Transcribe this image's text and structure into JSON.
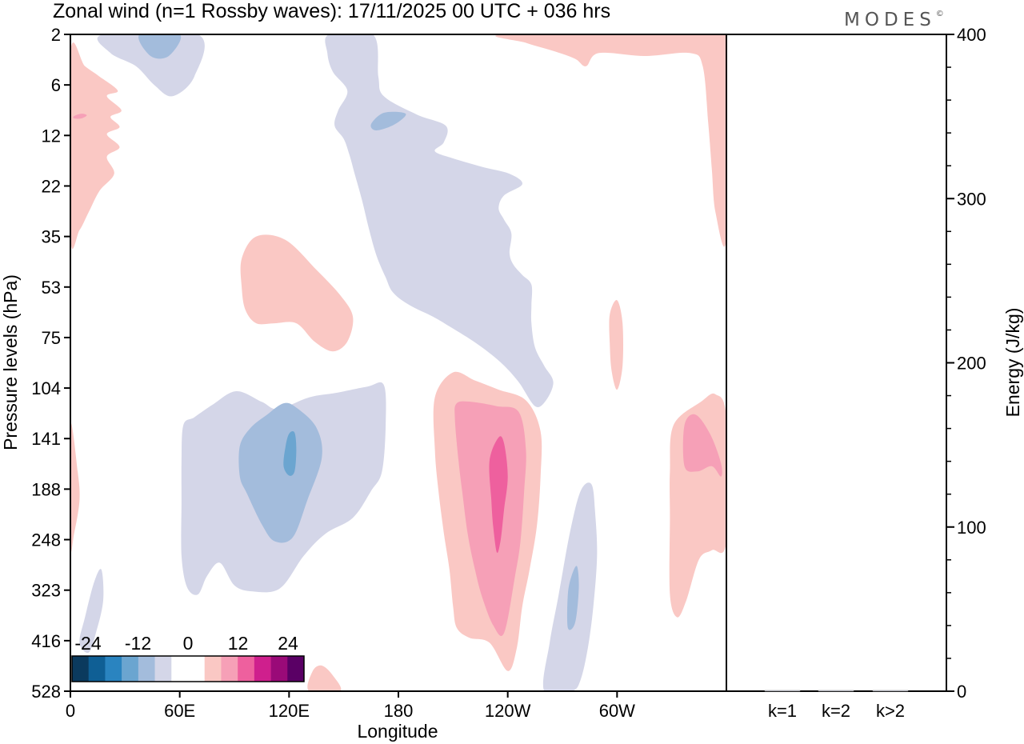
{
  "chart_data": {
    "type": "heatmap",
    "title": "Zonal wind (n=1 Rossby waves):  17/11/2025  00 UTC  + 036 hrs",
    "logo": "MODES",
    "logo_mark": "©",
    "xlabel": "Longitude",
    "ylabel": "Pressure levels (hPa)",
    "y2label": "Energy (J/kg)",
    "x_ticks": [
      "0",
      "60E",
      "120E",
      "180",
      "120W",
      "60W"
    ],
    "x_tick_values": [
      0,
      60,
      120,
      180,
      240,
      300
    ],
    "xlim": [
      0,
      360
    ],
    "pressure_levels": [
      "2",
      "6",
      "12",
      "22",
      "35",
      "53",
      "75",
      "104",
      "141",
      "188",
      "248",
      "323",
      "416",
      "528"
    ],
    "energy_ticks": [
      "0",
      "100",
      "200",
      "300",
      "400"
    ],
    "energy_tick_values": [
      0,
      100,
      200,
      300,
      400
    ],
    "energy_lim": [
      0,
      400
    ],
    "energy_categories": [
      "k=1",
      "k=2",
      "k>2"
    ],
    "energy_values": [
      0,
      0,
      0
    ],
    "colorbar": {
      "tick_labels": [
        "-24",
        "-12",
        "0",
        "12",
        "24"
      ],
      "colors": [
        "#0b3a5e",
        "#0f5f95",
        "#2a84c0",
        "#6ba5d0",
        "#a3bcdc",
        "#d4d6e8",
        "#ffffff",
        "#ffffff",
        "#fac8c4",
        "#f6a0b7",
        "#ee609e",
        "#cf1f8d",
        "#9a0a78",
        "#5a0065"
      ]
    },
    "contours": [
      {
        "name": "neg-top-left-light",
        "level": -3,
        "color": "#d4d6e8",
        "points": [
          [
            18,
            2
          ],
          [
            70,
            2
          ],
          [
            68,
            5
          ],
          [
            56,
            7
          ],
          [
            46,
            6
          ],
          [
            36,
            4
          ],
          [
            22,
            3
          ]
        ]
      },
      {
        "name": "neg-top-left-mid",
        "level": -6,
        "color": "#a3bcdc",
        "points": [
          [
            38,
            2
          ],
          [
            60,
            2
          ],
          [
            54,
            3.2
          ],
          [
            44,
            3.2
          ]
        ]
      },
      {
        "name": "neg-center-large",
        "level": -3,
        "color": "#d4d6e8",
        "points": [
          [
            142,
            2
          ],
          [
            166,
            2
          ],
          [
            169,
            5
          ],
          [
            172,
            7
          ],
          [
            190,
            9
          ],
          [
            206,
            10.5
          ],
          [
            205,
            13
          ],
          [
            200,
            14.5
          ],
          [
            210,
            15.8
          ],
          [
            226,
            17.5
          ],
          [
            241,
            19
          ],
          [
            248,
            21.5
          ],
          [
            238,
            24
          ],
          [
            235,
            27
          ],
          [
            238,
            30
          ],
          [
            242,
            34
          ],
          [
            241,
            40
          ],
          [
            243,
            44
          ],
          [
            248,
            48
          ],
          [
            253,
            52
          ],
          [
            253,
            60
          ],
          [
            253,
            68
          ],
          [
            255,
            80
          ],
          [
            260,
            90
          ],
          [
            265,
            100
          ],
          [
            261,
            112
          ],
          [
            255,
            116
          ],
          [
            246,
            100
          ],
          [
            236,
            88
          ],
          [
            223,
            78
          ],
          [
            209,
            70
          ],
          [
            199,
            65
          ],
          [
            186,
            60
          ],
          [
            177,
            55
          ],
          [
            173,
            49
          ],
          [
            168,
            41
          ],
          [
            164,
            33
          ],
          [
            160,
            25
          ],
          [
            156,
            19
          ],
          [
            153,
            15
          ],
          [
            150,
            12.5
          ],
          [
            145,
            10.5
          ],
          [
            147,
            8.5
          ],
          [
            152,
            6.5
          ],
          [
            144,
            4.5
          ],
          [
            141,
            3
          ]
        ]
      },
      {
        "name": "neg-center-small",
        "level": -6,
        "color": "#a3bcdc",
        "points": [
          [
            165,
            10.3
          ],
          [
            172,
            8.8
          ],
          [
            184,
            8.9
          ],
          [
            178,
            10.3
          ],
          [
            168,
            11.2
          ]
        ]
      },
      {
        "name": "neg-indian-ocean",
        "level": -3,
        "color": "#d4d6e8",
        "points": [
          [
            62,
            130
          ],
          [
            68,
            124
          ],
          [
            78,
            115
          ],
          [
            91,
            106
          ],
          [
            105,
            113
          ],
          [
            114,
            118
          ],
          [
            131,
            110
          ],
          [
            146,
            107
          ],
          [
            163,
            103
          ],
          [
            172,
            102
          ],
          [
            173,
            130
          ],
          [
            171,
            170
          ],
          [
            165,
            190
          ],
          [
            155,
            220
          ],
          [
            140,
            240
          ],
          [
            128,
            270
          ],
          [
            115,
            320
          ],
          [
            100,
            325
          ],
          [
            90,
            315
          ],
          [
            82,
            280
          ],
          [
            75,
            300
          ],
          [
            70,
            330
          ],
          [
            64,
            318
          ],
          [
            61,
            270
          ],
          [
            61,
            200
          ],
          [
            61,
            160
          ]
        ]
      },
      {
        "name": "neg-indian-ocean-mid",
        "level": -6,
        "color": "#a3bcdc",
        "points": [
          [
            93,
            147
          ],
          [
            99,
            132
          ],
          [
            108,
            122
          ],
          [
            117,
            114
          ],
          [
            124,
            117
          ],
          [
            135,
            132
          ],
          [
            138,
            157
          ],
          [
            130,
            200
          ],
          [
            122,
            245
          ],
          [
            112,
            250
          ],
          [
            105,
            228
          ],
          [
            97,
            193
          ],
          [
            93,
            175
          ]
        ]
      },
      {
        "name": "neg-indian-ocean-core",
        "level": -9,
        "color": "#6ba5d0",
        "points": [
          [
            118,
            148
          ],
          [
            120,
            137
          ],
          [
            123,
            136
          ],
          [
            124,
            150
          ],
          [
            123,
            170
          ],
          [
            120,
            174
          ],
          [
            117,
            165
          ]
        ]
      },
      {
        "name": "neg-bottom-left",
        "level": -3,
        "color": "#d4d6e8",
        "points": [
          [
            5,
            420
          ],
          [
            8,
            370
          ],
          [
            13,
            310
          ],
          [
            17,
            290
          ],
          [
            18,
            340
          ],
          [
            14,
            400
          ],
          [
            10,
            440
          ]
        ]
      },
      {
        "name": "neg-east-pacific",
        "level": -3,
        "color": "#d4d6e8",
        "points": [
          [
            260,
            528
          ],
          [
            263,
            420
          ],
          [
            268,
            330
          ],
          [
            274,
            240
          ],
          [
            280,
            190
          ],
          [
            286,
            183
          ],
          [
            288,
            215
          ],
          [
            289,
            270
          ],
          [
            287,
            350
          ],
          [
            284,
            430
          ],
          [
            280,
            500
          ],
          [
            275,
            528
          ]
        ]
      },
      {
        "name": "neg-east-pacific-mid",
        "level": -6,
        "color": "#a3bcdc",
        "points": [
          [
            273,
            330
          ],
          [
            275,
            300
          ],
          [
            278,
            285
          ],
          [
            279,
            320
          ],
          [
            277,
            380
          ],
          [
            273,
            390
          ]
        ]
      },
      {
        "name": "pos-top-left",
        "level": 3,
        "color": "#fac8c4",
        "points": [
          [
            0,
            3
          ],
          [
            8,
            4
          ],
          [
            16,
            5
          ],
          [
            26,
            6.5
          ],
          [
            20,
            7
          ],
          [
            28,
            8.5
          ],
          [
            22,
            9.3
          ],
          [
            27,
            10.7
          ],
          [
            20,
            11.8
          ],
          [
            27,
            13.8
          ],
          [
            20,
            15.5
          ],
          [
            24,
            19
          ],
          [
            16,
            23
          ],
          [
            10,
            28
          ],
          [
            5,
            33
          ],
          [
            0,
            35
          ]
        ]
      },
      {
        "name": "pos-top-left-core",
        "level": 6,
        "color": "#f6a0b7",
        "points": [
          [
            2,
            9.2
          ],
          [
            6,
            8.9
          ],
          [
            9,
            9.1
          ],
          [
            6,
            9.5
          ],
          [
            2,
            9.5
          ]
        ]
      },
      {
        "name": "pos-top-right",
        "level": 3,
        "color": "#fac8c4",
        "points": [
          [
            240,
            2
          ],
          [
            360,
            2
          ],
          [
            360,
            35
          ],
          [
            354,
            28
          ],
          [
            352,
            18
          ],
          [
            350,
            10
          ],
          [
            347,
            4
          ],
          [
            340,
            3
          ],
          [
            315,
            3.2
          ],
          [
            290,
            3
          ],
          [
            283,
            4
          ],
          [
            277,
            3.4
          ],
          [
            266,
            2.9
          ],
          [
            250,
            2.4
          ]
        ]
      },
      {
        "name": "pos-mid-left",
        "level": 3,
        "color": "#fac8c4",
        "points": [
          [
            94,
            42
          ],
          [
            102,
            35
          ],
          [
            118,
            36
          ],
          [
            135,
            46
          ],
          [
            148,
            56
          ],
          [
            155,
            65
          ],
          [
            152,
            77
          ],
          [
            144,
            82
          ],
          [
            134,
            77
          ],
          [
            124,
            68
          ],
          [
            112,
            68
          ],
          [
            102,
            68
          ],
          [
            96,
            62
          ],
          [
            94,
            53
          ]
        ]
      },
      {
        "name": "pos-mid-right",
        "level": 3,
        "color": "#fac8c4",
        "points": [
          [
            296,
            64
          ],
          [
            300,
            58
          ],
          [
            303,
            68
          ],
          [
            303,
            90
          ],
          [
            300,
            105
          ],
          [
            297,
            93
          ],
          [
            296,
            78
          ]
        ]
      },
      {
        "name": "pos-pacific-light",
        "level": 3,
        "color": "#fac8c4",
        "points": [
          [
            200,
            110
          ],
          [
            210,
            94
          ],
          [
            222,
            99
          ],
          [
            235,
            105
          ],
          [
            250,
            112
          ],
          [
            258,
            135
          ],
          [
            258,
            175
          ],
          [
            256,
            230
          ],
          [
            252,
            290
          ],
          [
            248,
            350
          ],
          [
            245,
            430
          ],
          [
            240,
            480
          ],
          [
            230,
            420
          ],
          [
            219,
            410
          ],
          [
            212,
            390
          ],
          [
            210,
            350
          ],
          [
            208,
            290
          ],
          [
            205,
            240
          ],
          [
            202,
            190
          ],
          [
            200,
            150
          ]
        ]
      },
      {
        "name": "pos-pacific-mid",
        "level": 6,
        "color": "#f6a0b7",
        "points": [
          [
            211,
            125
          ],
          [
            212,
            114
          ],
          [
            220,
            113
          ],
          [
            234,
            116
          ],
          [
            246,
            120
          ],
          [
            250,
            150
          ],
          [
            249,
            190
          ],
          [
            247,
            250
          ],
          [
            244,
            300
          ],
          [
            238,
            400
          ],
          [
            232,
            385
          ],
          [
            226,
            335
          ],
          [
            222,
            290
          ],
          [
            218,
            240
          ],
          [
            215,
            190
          ],
          [
            213,
            160
          ]
        ]
      },
      {
        "name": "pos-pacific-core",
        "level": 12,
        "color": "#ee609e",
        "points": [
          [
            230,
            160
          ],
          [
            235,
            140
          ],
          [
            238,
            145
          ],
          [
            240,
            175
          ],
          [
            238,
            210
          ],
          [
            236,
            250
          ],
          [
            234,
            265
          ],
          [
            232,
            230
          ],
          [
            231,
            200
          ]
        ]
      },
      {
        "name": "pos-far-right",
        "level": 3,
        "color": "#fac8c4",
        "points": [
          [
            346,
            113
          ],
          [
            354,
            108
          ],
          [
            360,
            125
          ],
          [
            360,
            250
          ],
          [
            352,
            262
          ],
          [
            345,
            275
          ],
          [
            338,
            340
          ],
          [
            333,
            370
          ],
          [
            329,
            330
          ],
          [
            329,
            220
          ],
          [
            329,
            170
          ],
          [
            331,
            130
          ]
        ]
      },
      {
        "name": "pos-far-right-mid",
        "level": 6,
        "color": "#f6a0b7",
        "points": [
          [
            337,
            130
          ],
          [
            343,
            122
          ],
          [
            351,
            137
          ],
          [
            357,
            162
          ],
          [
            357,
            175
          ],
          [
            352,
            165
          ],
          [
            344,
            170
          ],
          [
            337,
            165
          ]
        ]
      },
      {
        "name": "pos-left-edge",
        "level": 3,
        "color": "#fac8c4",
        "points": [
          [
            0,
            130
          ],
          [
            4,
            170
          ],
          [
            5,
            200
          ],
          [
            2,
            240
          ],
          [
            0,
            255
          ]
        ]
      },
      {
        "name": "pos-bottom-center",
        "level": 3,
        "color": "#fac8c4",
        "points": [
          [
            131,
            528
          ],
          [
            133,
            480
          ],
          [
            138,
            468
          ],
          [
            144,
            490
          ],
          [
            148,
            528
          ]
        ]
      }
    ]
  }
}
